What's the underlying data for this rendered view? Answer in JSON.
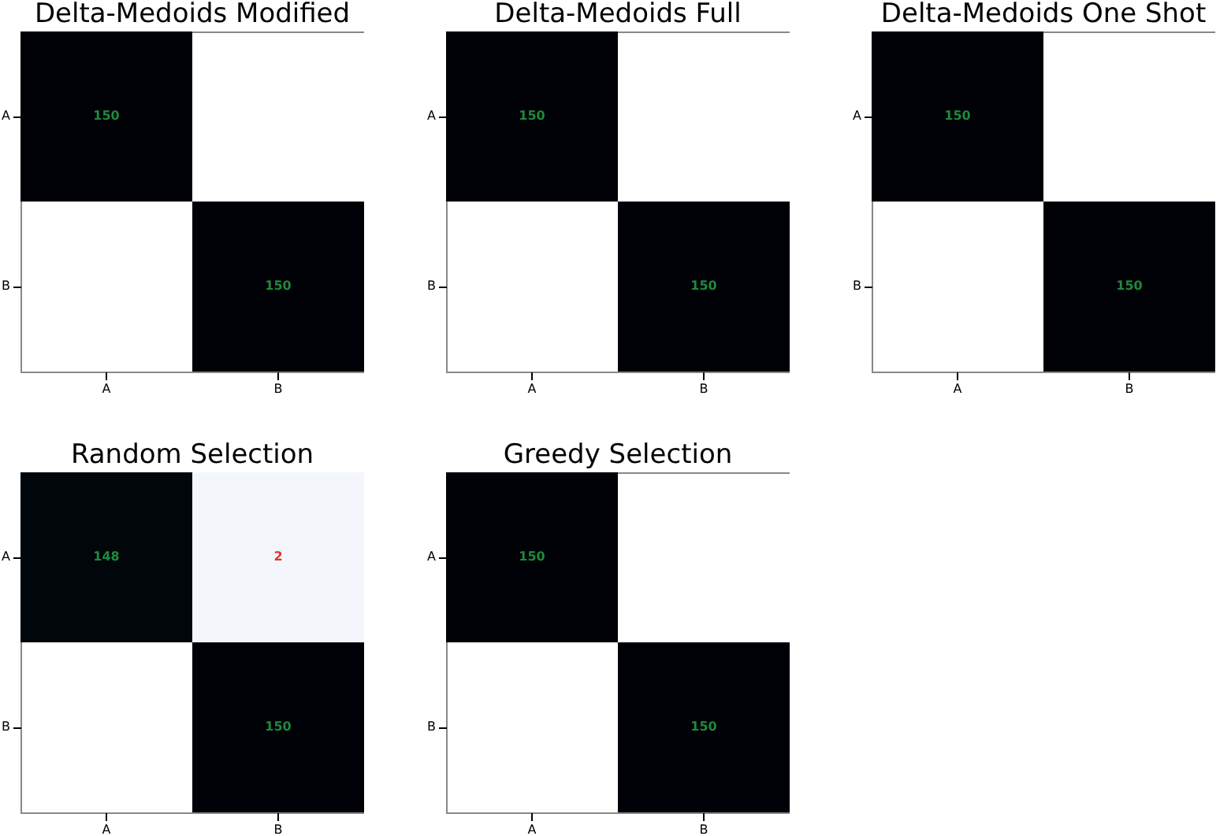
{
  "chart_data": [
    {
      "type": "heatmap",
      "title": "Delta-Medoids Modified",
      "categories": [
        "A",
        "B"
      ],
      "y_categories": [
        "A",
        "B"
      ],
      "cells": [
        [
          150,
          null
        ],
        [
          null,
          150
        ]
      ],
      "data_labels": true
    },
    {
      "type": "heatmap",
      "title": "Delta-Medoids Full",
      "categories": [
        "A",
        "B"
      ],
      "y_categories": [
        "A",
        "B"
      ],
      "cells": [
        [
          150,
          null
        ],
        [
          null,
          150
        ]
      ],
      "data_labels": true
    },
    {
      "type": "heatmap",
      "title": "Delta-Medoids One Shot",
      "categories": [
        "A",
        "B"
      ],
      "y_categories": [
        "A",
        "B"
      ],
      "cells": [
        [
          150,
          null
        ],
        [
          null,
          150
        ]
      ],
      "data_labels": true
    },
    {
      "type": "heatmap",
      "title": "Random Selection",
      "categories": [
        "A",
        "B"
      ],
      "y_categories": [
        "A",
        "B"
      ],
      "cells": [
        [
          148,
          2
        ],
        [
          null,
          150
        ]
      ],
      "data_labels": true
    },
    {
      "type": "heatmap",
      "title": "Greedy Selection",
      "categories": [
        "A",
        "B"
      ],
      "y_categories": [
        "A",
        "B"
      ],
      "cells": [
        [
          150,
          null
        ],
        [
          null,
          150
        ]
      ],
      "data_labels": true
    }
  ]
}
